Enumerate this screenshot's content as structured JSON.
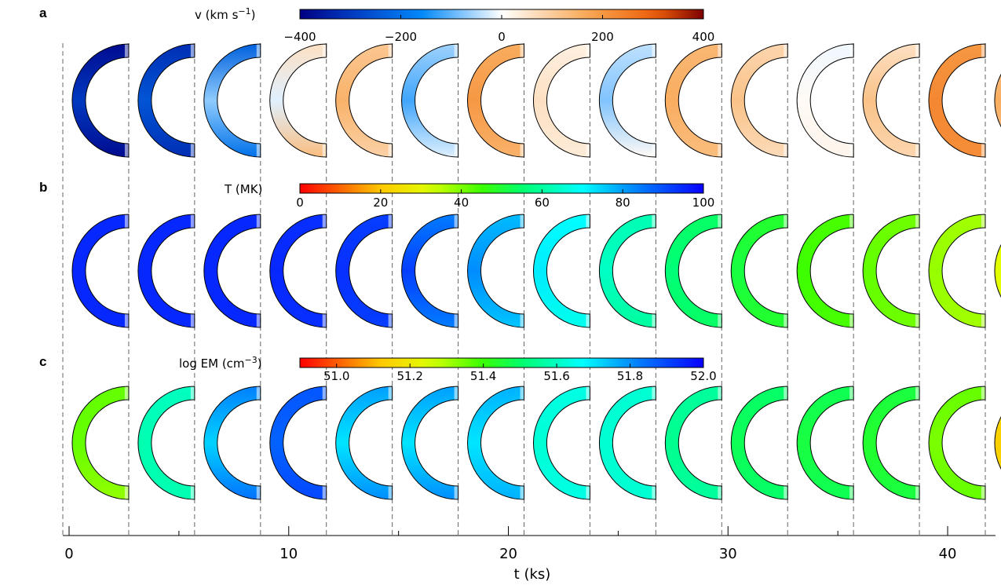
{
  "panels": [
    {
      "letter": "a",
      "colorbar": {
        "title_main": "v (km s",
        "title_sup": "−1",
        "title_end": ")",
        "colormap": "blue-white-red",
        "range": [
          -400,
          400
        ],
        "tick_values": [
          -400,
          -200,
          0,
          200,
          400
        ],
        "tick_labels": [
          "−400",
          "−200",
          "0",
          "200",
          "400"
        ]
      },
      "loops": [
        [
          -380,
          -300,
          -380
        ],
        [
          -320,
          -250,
          -320
        ],
        [
          -230,
          -70,
          -200
        ],
        [
          60,
          -20,
          130
        ],
        [
          110,
          150,
          90
        ],
        [
          -60,
          -120,
          -20
        ],
        [
          160,
          200,
          150
        ],
        [
          30,
          60,
          40
        ],
        [
          -40,
          -80,
          10
        ],
        [
          140,
          160,
          130
        ],
        [
          80,
          120,
          70
        ],
        [
          -10,
          10,
          20
        ],
        [
          60,
          120,
          80
        ],
        [
          200,
          230,
          220
        ],
        [
          110,
          160,
          120
        ]
      ]
    },
    {
      "letter": "b",
      "colorbar": {
        "title_main": "T (MK)",
        "title_sup": "",
        "title_end": "",
        "colormap": "rainbow",
        "range": [
          0,
          100
        ],
        "tick_values": [
          0,
          20,
          40,
          60,
          80,
          100
        ],
        "tick_labels": [
          "0",
          "20",
          "40",
          "60",
          "80",
          "100"
        ]
      },
      "loops": [
        [
          95,
          95,
          95
        ],
        [
          95,
          95,
          95
        ],
        [
          95,
          95,
          95
        ],
        [
          94,
          95,
          94
        ],
        [
          92,
          94,
          92
        ],
        [
          84,
          92,
          84
        ],
        [
          77,
          82,
          76
        ],
        [
          70,
          72,
          68
        ],
        [
          62,
          64,
          60
        ],
        [
          54,
          56,
          54
        ],
        [
          49,
          51,
          49
        ],
        [
          44,
          45,
          44
        ],
        [
          41,
          42,
          41
        ],
        [
          37,
          38,
          37
        ],
        [
          31,
          32,
          31
        ]
      ]
    },
    {
      "letter": "c",
      "colorbar": {
        "title_main": "log EM (cm",
        "title_sup": "−3",
        "title_end": ")",
        "colormap": "rainbow",
        "range": [
          50.9,
          52.0
        ],
        "tick_values": [
          51.0,
          51.2,
          51.4,
          51.6,
          51.8,
          52.0
        ],
        "tick_labels": [
          "51.0",
          "51.2",
          "51.4",
          "51.6",
          "51.8",
          "52.0"
        ]
      },
      "loops": [
        [
          51.36,
          51.36,
          51.32
        ],
        [
          51.6,
          51.58,
          51.58
        ],
        [
          51.82,
          51.72,
          51.84
        ],
        [
          51.88,
          51.86,
          51.9
        ],
        [
          51.78,
          51.7,
          51.8
        ],
        [
          51.78,
          51.7,
          51.8
        ],
        [
          51.76,
          51.7,
          51.76
        ],
        [
          51.64,
          51.62,
          51.64
        ],
        [
          51.62,
          51.62,
          51.62
        ],
        [
          51.56,
          51.54,
          51.56
        ],
        [
          51.5,
          51.48,
          51.5
        ],
        [
          51.48,
          51.46,
          51.48
        ],
        [
          51.46,
          51.44,
          51.46
        ],
        [
          51.36,
          51.34,
          51.36
        ],
        [
          51.16,
          51.14,
          51.16
        ]
      ]
    }
  ],
  "axis": {
    "label": "t (ks)",
    "range": [
      -0.5,
      42.5
    ],
    "tick_values": [
      0,
      10,
      20,
      30,
      40
    ],
    "tick_labels": [
      "0",
      "10",
      "20",
      "30",
      "40"
    ],
    "minor_step": 5,
    "boundary_times": [
      0,
      3,
      6,
      9,
      12,
      15,
      18,
      21,
      24,
      27,
      30,
      33,
      36,
      39,
      42
    ]
  }
}
